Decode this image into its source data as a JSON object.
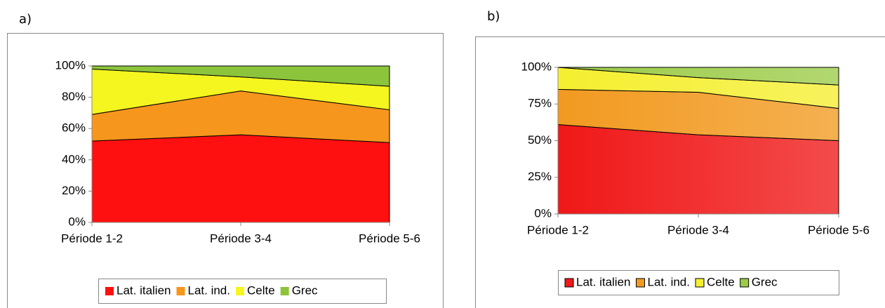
{
  "chart_data": [
    {
      "type": "area",
      "stacked": true,
      "title": "a)",
      "categories": [
        "Période 1-2",
        "Période 3-4",
        "Période 5-6"
      ],
      "series": [
        {
          "name": "Lat. italien",
          "color": "#ff1010",
          "values": [
            52,
            56,
            51
          ]
        },
        {
          "name": "Lat. ind.",
          "color": "#f7961c",
          "values": [
            17,
            28,
            21
          ]
        },
        {
          "name": "Celte",
          "color": "#f5f520",
          "values": [
            29,
            9,
            15
          ]
        },
        {
          "name": "Grec",
          "color": "#8cc43c",
          "values": [
            2,
            7,
            13
          ]
        }
      ],
      "ylim": [
        0,
        100
      ],
      "yticks": [
        {
          "value": 0,
          "label": "0%"
        },
        {
          "value": 20,
          "label": "20%"
        },
        {
          "value": 40,
          "label": "40%"
        },
        {
          "value": 60,
          "label": "60%"
        },
        {
          "value": 80,
          "label": "80%"
        },
        {
          "value": 100,
          "label": "100%"
        }
      ],
      "legend": "bottom",
      "gradient": false
    },
    {
      "type": "area",
      "stacked": true,
      "title": "b)",
      "categories": [
        "Période 1-2",
        "Période 3-4",
        "Période 5-6"
      ],
      "series": [
        {
          "name": "Lat. italien",
          "color": "#f01818",
          "values": [
            61,
            54,
            50
          ]
        },
        {
          "name": "Lat. ind.",
          "color": "#f29a20",
          "values": [
            24,
            29,
            22
          ]
        },
        {
          "name": "Celte",
          "color": "#f5ef30",
          "values": [
            15,
            10,
            16
          ]
        },
        {
          "name": "Grec",
          "color": "#9ccc48",
          "values": [
            0,
            7,
            12
          ]
        }
      ],
      "ylim": [
        0,
        100
      ],
      "yticks": [
        {
          "value": 0,
          "label": "0%"
        },
        {
          "value": 25,
          "label": "25%"
        },
        {
          "value": 50,
          "label": "50%"
        },
        {
          "value": 75,
          "label": "75%"
        },
        {
          "value": 100,
          "label": "100%"
        }
      ],
      "legend": "bottom",
      "gradient": true
    }
  ]
}
